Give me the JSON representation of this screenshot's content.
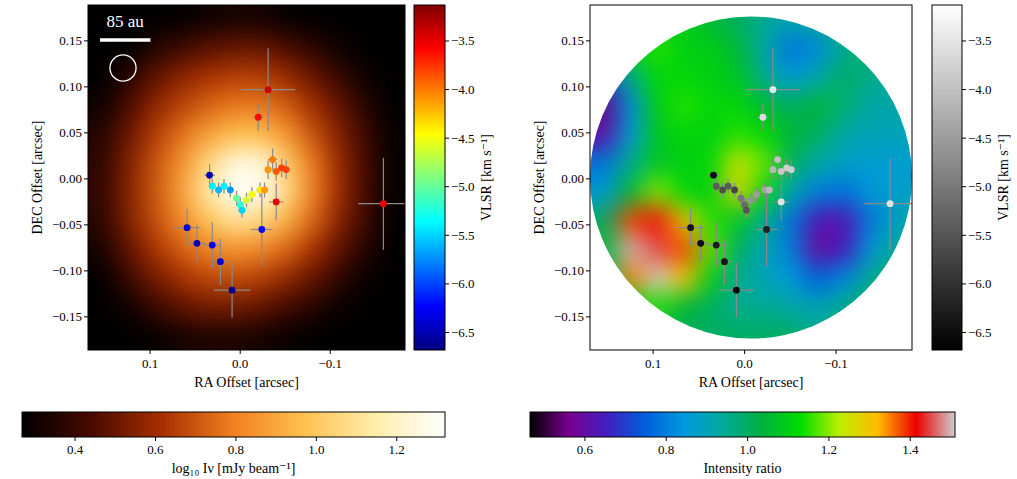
{
  "chart_data": [
    {
      "type": "heatmap",
      "x_label": "RA Offset [arcsec]",
      "y_label": "DEC Offset [arcsec]",
      "xlim": [
        0.169,
        -0.183
      ],
      "ylim": [
        -0.186,
        0.189
      ],
      "xticks": [
        {
          "value": 0.1,
          "label": "0.1"
        },
        {
          "value": 0.0,
          "label": "0.0"
        },
        {
          "value": -0.1,
          "label": "−0.1"
        }
      ],
      "yticks": [
        {
          "value": -0.15,
          "label": "−0.15"
        },
        {
          "value": -0.1,
          "label": "−0.10"
        },
        {
          "value": -0.05,
          "label": "−0.05"
        },
        {
          "value": 0.0,
          "label": "0.00"
        },
        {
          "value": 0.05,
          "label": "0.05"
        },
        {
          "value": 0.1,
          "label": "0.10"
        },
        {
          "value": 0.15,
          "label": "0.15"
        }
      ],
      "cells": [
        [
          0.25,
          0.25,
          0.25,
          0.27,
          0.3,
          0.32,
          0.32,
          0.28,
          0.25,
          0.25,
          0.25,
          0.25
        ],
        [
          0.25,
          0.27,
          0.35,
          0.42,
          0.47,
          0.5,
          0.5,
          0.45,
          0.38,
          0.3,
          0.25,
          0.25
        ],
        [
          0.26,
          0.36,
          0.48,
          0.56,
          0.62,
          0.65,
          0.65,
          0.6,
          0.5,
          0.4,
          0.3,
          0.25
        ],
        [
          0.3,
          0.44,
          0.57,
          0.66,
          0.73,
          0.78,
          0.78,
          0.72,
          0.61,
          0.49,
          0.36,
          0.26
        ],
        [
          0.35,
          0.5,
          0.64,
          0.76,
          0.88,
          0.97,
          0.97,
          0.86,
          0.7,
          0.55,
          0.41,
          0.28
        ],
        [
          0.37,
          0.54,
          0.69,
          0.84,
          1.05,
          1.25,
          1.25,
          1.02,
          0.78,
          0.59,
          0.43,
          0.28
        ],
        [
          0.38,
          0.55,
          0.7,
          0.87,
          1.12,
          1.34,
          1.3,
          1.08,
          0.8,
          0.6,
          0.43,
          0.28
        ],
        [
          0.36,
          0.54,
          0.68,
          0.82,
          0.98,
          1.1,
          1.06,
          0.93,
          0.74,
          0.56,
          0.41,
          0.27
        ],
        [
          0.32,
          0.48,
          0.62,
          0.72,
          0.8,
          0.85,
          0.82,
          0.74,
          0.62,
          0.48,
          0.35,
          0.26
        ],
        [
          0.27,
          0.4,
          0.52,
          0.61,
          0.67,
          0.68,
          0.65,
          0.58,
          0.49,
          0.38,
          0.29,
          0.25
        ],
        [
          0.25,
          0.3,
          0.4,
          0.48,
          0.52,
          0.52,
          0.49,
          0.43,
          0.36,
          0.29,
          0.25,
          0.25
        ],
        [
          0.25,
          0.25,
          0.28,
          0.32,
          0.34,
          0.34,
          0.32,
          0.29,
          0.26,
          0.25,
          0.25,
          0.25
        ]
      ],
      "colorbar": {
        "label": "log₁₀ Iν [mJy beam⁻¹]",
        "range": [
          0.268,
          1.32
        ],
        "ticks": [
          0.4,
          0.6,
          0.8,
          {
            "value": 1.0,
            "label": "1.0"
          },
          1.2
        ],
        "colors": [
          "#000000",
          "#4a0a00",
          "#a83000",
          "#f08020",
          "#ffc050",
          "#ffeeaa",
          "#ffffff"
        ]
      },
      "points": {
        "x": [
          -0.031,
          -0.02,
          -0.159,
          -0.04,
          0.034,
          0.031,
          0.024,
          0.018,
          0.011,
          0.004,
          0.0,
          -0.002,
          -0.007,
          -0.013,
          -0.022,
          -0.027,
          -0.031,
          -0.036,
          -0.04,
          -0.046,
          -0.051,
          0.059,
          0.048,
          0.031,
          0.022,
          0.009,
          -0.024
        ],
        "y": [
          0.097,
          0.067,
          -0.027,
          -0.025,
          0.004,
          -0.008,
          -0.012,
          -0.008,
          -0.012,
          -0.021,
          -0.028,
          -0.034,
          -0.023,
          -0.017,
          -0.012,
          -0.012,
          0.01,
          0.021,
          0.008,
          0.012,
          0.01,
          -0.053,
          -0.07,
          -0.072,
          -0.09,
          -0.121,
          -0.055
        ],
        "values": [
          -3.4,
          -3.6,
          -3.5,
          -3.5,
          -6.5,
          -5.4,
          -5.6,
          -5.4,
          -5.7,
          -5.0,
          -5.2,
          -5.5,
          -4.6,
          -4.5,
          -4.4,
          -4.1,
          -4.1,
          -4.0,
          -3.9,
          -3.8,
          -3.8,
          -6.4,
          -6.5,
          -6.3,
          -6.4,
          -6.6,
          -6.2
        ],
        "x_err": [
          0.03,
          0.006,
          0.028,
          0.008,
          0.006,
          0.004,
          0.004,
          0.004,
          0.004,
          0.004,
          0.004,
          0.004,
          0.004,
          0.004,
          0.004,
          0.004,
          0.004,
          0.005,
          0.004,
          0.004,
          0.004,
          0.015,
          0.01,
          0.01,
          0.008,
          0.02,
          0.012
        ],
        "y_err": [
          0.045,
          0.015,
          0.05,
          0.02,
          0.012,
          0.008,
          0.008,
          0.008,
          0.008,
          0.008,
          0.008,
          0.008,
          0.008,
          0.008,
          0.008,
          0.008,
          0.01,
          0.012,
          0.01,
          0.01,
          0.01,
          0.02,
          0.02,
          0.025,
          0.025,
          0.03,
          0.04
        ]
      },
      "points_colorbar": {
        "label": "VLSR [km s⁻¹]",
        "range": [
          -6.68,
          -3.13
        ],
        "ticks": [
          {
            "value": -3.5,
            "label": "−3.5"
          },
          {
            "value": -4.0,
            "label": "−4.0"
          },
          {
            "value": -4.5,
            "label": "−4.5"
          },
          {
            "value": -5.0,
            "label": "−5.0"
          },
          {
            "value": -5.5,
            "label": "−5.5"
          },
          {
            "value": -6.0,
            "label": "−6.0"
          },
          {
            "value": -6.5,
            "label": "−6.5"
          }
        ],
        "colors": [
          "#00007f",
          "#0000ff",
          "#007fff",
          "#00ffff",
          "#7fff7f",
          "#ffff00",
          "#ff7f00",
          "#ff0000",
          "#7f0000"
        ]
      },
      "scale_bar": {
        "label": "85 au",
        "length": 0.056
      },
      "beam": 0.029
    },
    {
      "type": "heatmap",
      "x_label": "RA Offset [arcsec]",
      "y_label": "DEC Offset [arcsec]",
      "xlim": [
        0.169,
        -0.183
      ],
      "ylim": [
        -0.186,
        0.189
      ],
      "xticks": [
        {
          "value": 0.1,
          "label": "0.1"
        },
        {
          "value": 0.0,
          "label": "0.0"
        },
        {
          "value": -0.1,
          "label": "−0.1"
        }
      ],
      "yticks": [
        {
          "value": -0.15,
          "label": "−0.15"
        },
        {
          "value": -0.1,
          "label": "−0.10"
        },
        {
          "value": -0.05,
          "label": "−0.05"
        },
        {
          "value": 0.0,
          "label": "0.00"
        },
        {
          "value": 0.05,
          "label": "0.05"
        },
        {
          "value": 0.1,
          "label": "0.10"
        },
        {
          "value": 0.15,
          "label": "0.15"
        }
      ],
      "cells": [
        [
          1.0,
          1.05,
          1.1,
          1.1,
          1.05,
          1.0,
          0.95,
          0.9,
          0.95,
          1.0,
          1.0,
          1.0
        ],
        [
          1.0,
          1.1,
          1.15,
          1.1,
          1.1,
          1.05,
          0.92,
          0.78,
          0.82,
          0.95,
          1.0,
          1.0
        ],
        [
          0.7,
          0.95,
          1.12,
          1.12,
          1.1,
          1.08,
          0.95,
          0.85,
          0.92,
          1.0,
          0.95,
          0.95
        ],
        [
          0.55,
          0.82,
          1.1,
          1.15,
          1.12,
          1.12,
          1.05,
          1.0,
          1.05,
          0.98,
          0.92,
          0.92
        ],
        [
          0.6,
          0.85,
          1.08,
          1.12,
          1.1,
          1.15,
          1.12,
          1.05,
          1.0,
          0.92,
          0.9,
          0.9
        ],
        [
          0.78,
          0.95,
          1.08,
          1.1,
          1.12,
          1.25,
          1.18,
          1.0,
          0.92,
          0.88,
          0.86,
          0.86
        ],
        [
          0.85,
          1.05,
          1.2,
          1.12,
          1.1,
          1.28,
          1.12,
          0.9,
          0.8,
          0.78,
          0.85,
          0.88
        ],
        [
          1.0,
          1.38,
          1.42,
          1.3,
          1.15,
          1.08,
          0.95,
          0.78,
          0.62,
          0.62,
          0.8,
          0.9
        ],
        [
          1.05,
          1.5,
          1.45,
          1.38,
          1.18,
          1.0,
          0.9,
          0.8,
          0.58,
          0.65,
          0.85,
          0.95
        ],
        [
          0.98,
          1.35,
          1.52,
          1.3,
          1.1,
          0.95,
          0.9,
          0.85,
          0.75,
          0.82,
          0.95,
          1.0
        ],
        [
          1.0,
          1.1,
          1.15,
          1.05,
          1.0,
          0.95,
          0.95,
          0.92,
          0.9,
          0.95,
          1.0,
          1.0
        ],
        [
          1.0,
          1.0,
          1.05,
          1.0,
          1.0,
          1.0,
          1.0,
          1.0,
          0.95,
          1.0,
          1.0,
          1.0
        ]
      ],
      "colorbar": {
        "label": "Intensity ratio",
        "range": [
          0.465,
          1.51
        ],
        "ticks": [
          0.6,
          0.8,
          {
            "value": 1.0,
            "label": "1.0"
          },
          1.2,
          1.4
        ],
        "colors": [
          "#000000",
          "#7a0090",
          "#4020c0",
          "#0060dd",
          "#0099dd",
          "#00aa99",
          "#00b040",
          "#00dd00",
          "#bbee00",
          "#ffbb00",
          "#ee0000",
          "#cccccc"
        ]
      },
      "points": {
        "x": [
          -0.031,
          -0.02,
          -0.159,
          -0.04,
          0.034,
          0.031,
          0.024,
          0.018,
          0.011,
          0.004,
          0.0,
          -0.002,
          -0.007,
          -0.013,
          -0.022,
          -0.027,
          -0.031,
          -0.036,
          -0.04,
          -0.046,
          -0.051,
          0.059,
          0.048,
          0.031,
          0.022,
          0.009,
          -0.024
        ],
        "y": [
          0.097,
          0.067,
          -0.027,
          -0.025,
          0.004,
          -0.008,
          -0.012,
          -0.008,
          -0.012,
          -0.021,
          -0.028,
          -0.034,
          -0.023,
          -0.017,
          -0.012,
          -0.012,
          0.01,
          0.021,
          0.008,
          0.012,
          0.01,
          -0.053,
          -0.07,
          -0.072,
          -0.09,
          -0.121,
          -0.055
        ],
        "values": [
          -3.4,
          -3.6,
          -3.5,
          -3.5,
          -6.5,
          -5.4,
          -5.6,
          -5.4,
          -5.7,
          -5.0,
          -5.2,
          -5.5,
          -4.6,
          -4.5,
          -4.4,
          -4.1,
          -4.1,
          -4.0,
          -3.9,
          -3.8,
          -3.8,
          -6.4,
          -6.5,
          -6.3,
          -6.4,
          -6.6,
          -6.2
        ],
        "x_err": [
          0.03,
          0.006,
          0.028,
          0.008,
          0.006,
          0.004,
          0.004,
          0.004,
          0.004,
          0.004,
          0.004,
          0.004,
          0.004,
          0.004,
          0.004,
          0.004,
          0.004,
          0.005,
          0.004,
          0.004,
          0.004,
          0.015,
          0.01,
          0.01,
          0.008,
          0.02,
          0.012
        ],
        "y_err": [
          0.045,
          0.015,
          0.05,
          0.02,
          0.012,
          0.008,
          0.008,
          0.008,
          0.008,
          0.008,
          0.008,
          0.008,
          0.008,
          0.008,
          0.008,
          0.008,
          0.01,
          0.012,
          0.01,
          0.01,
          0.01,
          0.02,
          0.02,
          0.025,
          0.025,
          0.03,
          0.04
        ]
      },
      "points_colorbar": {
        "label": "VLSR [km s⁻¹]",
        "range": [
          -6.68,
          -3.13
        ],
        "ticks": [
          {
            "value": -3.5,
            "label": "−3.5"
          },
          {
            "value": -4.0,
            "label": "−4.0"
          },
          {
            "value": -4.5,
            "label": "−4.5"
          },
          {
            "value": -5.0,
            "label": "−5.0"
          },
          {
            "value": -5.5,
            "label": "−5.5"
          },
          {
            "value": -6.0,
            "label": "−6.0"
          },
          {
            "value": -6.5,
            "label": "−6.5"
          }
        ],
        "colors": [
          "#000000",
          "#ffffff"
        ]
      }
    }
  ]
}
